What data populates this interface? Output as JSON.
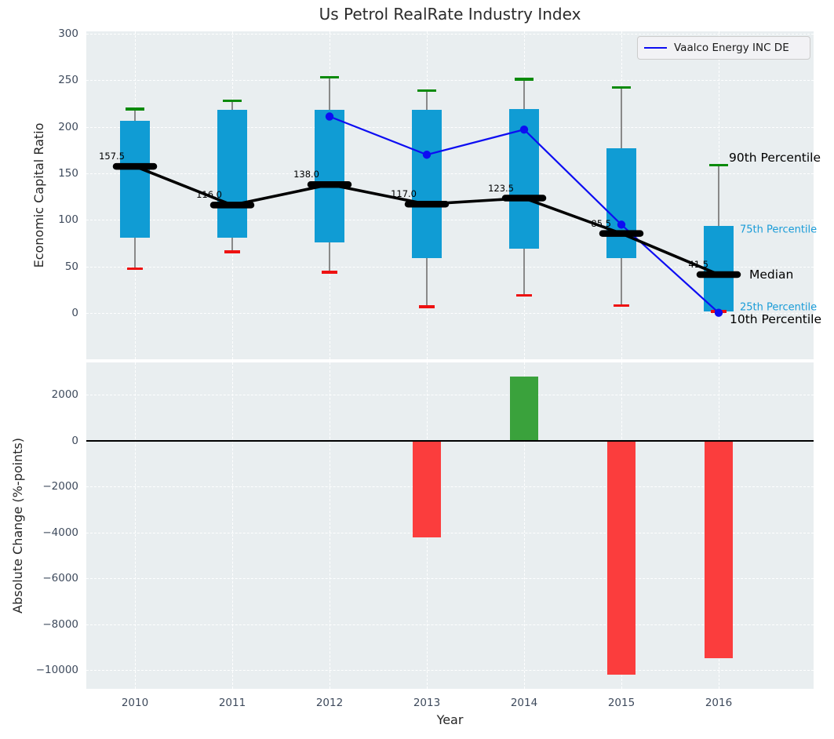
{
  "title": "Us Petrol RealRate Industry Index",
  "xlabel": "Year",
  "legend": {
    "label": "Vaalco Energy INC DE"
  },
  "top_panel": {
    "ylabel": "Economic Capital Ratio",
    "yticks": [
      300,
      250,
      200,
      150,
      100,
      50,
      0
    ],
    "annotations": [
      {
        "text": "90th Percentile",
        "color": "#000000",
        "size": "lg"
      },
      {
        "text": "75th Percentile",
        "color": "#1a9cd8",
        "size": "sm"
      },
      {
        "text": "Median",
        "color": "#000000",
        "size": "lg"
      },
      {
        "text": "25th Percentile",
        "color": "#1a9cd8",
        "size": "sm"
      },
      {
        "text": "10th Percentile",
        "color": "#000000",
        "size": "lg"
      }
    ]
  },
  "bottom_panel": {
    "ylabel": "Absolute Change (%-points)",
    "yticks": [
      2000,
      0,
      -2000,
      -4000,
      -6000,
      -8000,
      -10000
    ]
  },
  "colors": {
    "box": "#109cd4",
    "whisker": "#898989",
    "cap_top": "#0b8a0b",
    "cap_bottom": "#ee1111",
    "median": "#000000",
    "vaalco_line": "#0d0df2",
    "bar_positive": "#3aa23c",
    "bar_negative": "#fb3d3d",
    "panel_bg": "#e9eef0",
    "tick_text": "#3e4a5c"
  },
  "chart_data": [
    {
      "type": "box-whisker+line",
      "title": "Us Petrol RealRate Industry Index",
      "xlabel": "Year",
      "ylabel": "Economic Capital Ratio",
      "categories": [
        "2010",
        "2011",
        "2012",
        "2013",
        "2014",
        "2015",
        "2016"
      ],
      "ylim": [
        -49,
        302
      ],
      "grid": true,
      "legend_position": "upper right",
      "series": [
        {
          "name": "90th Percentile",
          "values": [
            219,
            228,
            253,
            239,
            251,
            242,
            159
          ]
        },
        {
          "name": "75th Percentile",
          "values": [
            206,
            218,
            218,
            218,
            219,
            177,
            94
          ]
        },
        {
          "name": "Median",
          "values": [
            157.5,
            116.0,
            138.0,
            117.0,
            123.5,
            85.5,
            41.5
          ]
        },
        {
          "name": "25th Percentile",
          "values": [
            81,
            81,
            76,
            59,
            69,
            59,
            2
          ]
        },
        {
          "name": "10th Percentile",
          "values": [
            48,
            66,
            44,
            7,
            19,
            8,
            2
          ]
        },
        {
          "name": "Vaalco Energy INC DE",
          "x": [
            "2012",
            "2013",
            "2014",
            "2015",
            "2016"
          ],
          "values": [
            211,
            170,
            197,
            95,
            0.5
          ]
        }
      ],
      "median_labels": [
        "157.5",
        "116.0",
        "138.0",
        "117.0",
        "123.5",
        "85.5",
        "41.5"
      ]
    },
    {
      "type": "bar",
      "xlabel": "Year",
      "ylabel": "Absolute Change (%-points)",
      "categories": [
        "2010",
        "2011",
        "2012",
        "2013",
        "2014",
        "2015",
        "2016"
      ],
      "values": [
        0,
        0,
        0,
        -4200,
        2800,
        -10200,
        -9500
      ],
      "ylim": [
        -10800,
        3400
      ],
      "grid": true
    }
  ]
}
